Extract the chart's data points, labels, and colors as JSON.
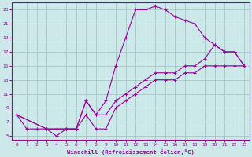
{
  "xlabel": "Windchill (Refroidissement éolien,°C)",
  "bg_color": "#cce8e8",
  "grid_color": "#aacccc",
  "line_color": "#990099",
  "xlim": [
    -0.5,
    23.5
  ],
  "ylim": [
    4.5,
    24.0
  ],
  "xticks": [
    0,
    1,
    2,
    3,
    4,
    5,
    6,
    7,
    8,
    9,
    10,
    11,
    12,
    13,
    14,
    15,
    16,
    17,
    18,
    19,
    20,
    21,
    22,
    23
  ],
  "yticks": [
    5,
    7,
    9,
    11,
    13,
    15,
    17,
    19,
    21,
    23
  ],
  "curve1_x": [
    0,
    1,
    2,
    3,
    4,
    5,
    6,
    7,
    8,
    9,
    10,
    11,
    12,
    13,
    14,
    15,
    16,
    17,
    18,
    19,
    20,
    21,
    22,
    23
  ],
  "curve1_y": [
    8,
    6,
    6,
    6,
    5,
    6,
    6,
    10,
    8,
    10,
    15,
    19,
    23,
    23,
    23.5,
    23,
    22,
    21.5,
    21,
    19,
    18,
    17,
    17,
    15
  ],
  "curve2_x": [
    0,
    3,
    4,
    5,
    6,
    7,
    8,
    9,
    10,
    11,
    12,
    13,
    14,
    15,
    16,
    17,
    18,
    19,
    20,
    21,
    22,
    23
  ],
  "curve2_y": [
    8,
    6,
    6,
    6,
    6,
    10,
    8,
    8,
    10,
    11,
    12,
    13,
    14,
    14,
    14,
    15,
    15,
    16,
    18,
    17,
    17,
    15
  ],
  "curve3_x": [
    0,
    3,
    4,
    5,
    6,
    7,
    8,
    9,
    10,
    11,
    12,
    13,
    14,
    15,
    16,
    17,
    18,
    19,
    20,
    21,
    22,
    23
  ],
  "curve3_y": [
    8,
    6,
    6,
    6,
    6,
    8,
    6,
    6,
    9,
    10,
    11,
    12,
    13,
    13,
    13,
    14,
    14,
    15,
    15,
    15,
    15,
    15
  ]
}
